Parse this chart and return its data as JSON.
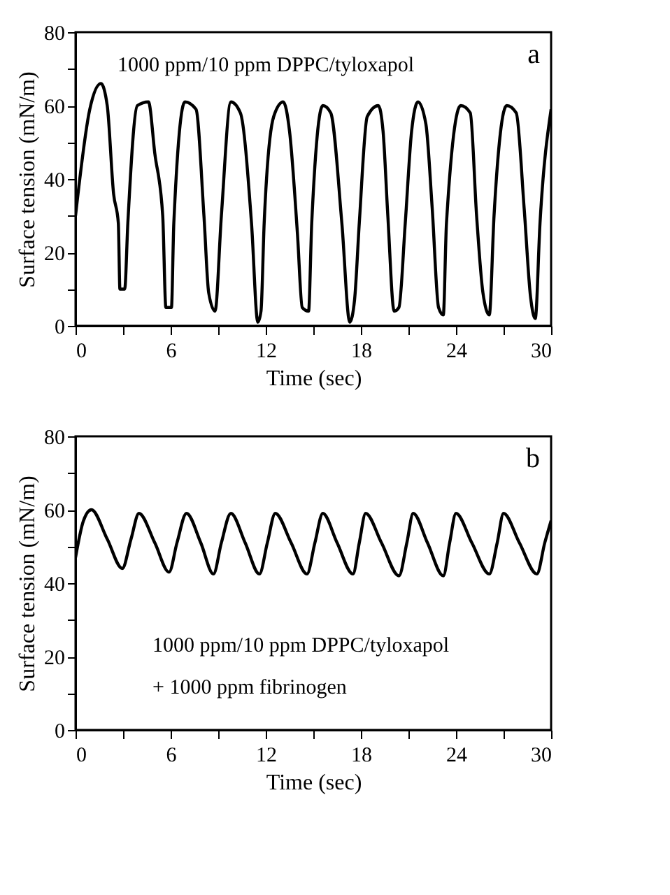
{
  "chart_data": [
    {
      "type": "line",
      "xlabel": "Time (sec)",
      "ylabel": "Surface tension (mN/m)",
      "annotations": [
        "a",
        "1000 ppm/10 ppm DPPC/tyloxapol"
      ],
      "xlim": [
        0,
        30
      ],
      "ylim": [
        0,
        80
      ],
      "grid": false,
      "marker": "none",
      "line_style": "solid",
      "xticks": [
        0,
        {
          "value": 3,
          "label": null
        },
        6,
        {
          "value": 9,
          "label": null
        },
        12,
        {
          "value": 15,
          "label": null
        },
        18,
        {
          "value": 21,
          "label": null
        },
        24,
        {
          "value": 27,
          "label": null
        },
        30
      ],
      "yticks": [
        0,
        {
          "value": 10,
          "label": null
        },
        20,
        {
          "value": 30,
          "label": null
        },
        40,
        {
          "value": 50,
          "label": null
        },
        60,
        {
          "value": 70,
          "label": null
        },
        80
      ],
      "series": [
        {
          "color": "#000000",
          "x": [
            0,
            0.9,
            1.6,
            2.0,
            2.4,
            2.7,
            2.8,
            3.1,
            3.3,
            3.9,
            4.6,
            5.0,
            5.5,
            5.7,
            6.05,
            6.2,
            6.9,
            7.6,
            8.1,
            8.4,
            8.8,
            9.2,
            9.8,
            10.4,
            11.1,
            11.5,
            11.7,
            11.9,
            12.5,
            13.1,
            13.5,
            14.0,
            14.3,
            14.7,
            14.9,
            15.6,
            16.1,
            16.8,
            17.3,
            17.6,
            17.9,
            18.4,
            19.1,
            19.4,
            19.7,
            20.1,
            20.4,
            20.8,
            21.2,
            21.6,
            22.1,
            22.5,
            22.9,
            23.2,
            23.4,
            24.3,
            24.9,
            25.3,
            25.7,
            26.1,
            26.4,
            27.2,
            27.8,
            28.3,
            28.7,
            29.0,
            29.3,
            30
          ],
          "values": [
            30,
            59,
            66,
            60,
            36,
            28,
            10,
            10,
            28,
            60,
            61,
            47,
            30,
            5,
            5,
            28,
            61,
            59,
            30,
            9,
            4,
            30,
            61,
            58,
            28,
            1,
            4,
            28,
            57,
            61,
            53,
            25,
            5,
            4,
            28,
            60,
            58,
            28,
            1,
            7,
            28,
            57,
            60,
            53,
            30,
            4,
            5,
            28,
            53,
            61,
            55,
            32,
            5,
            3,
            28,
            60,
            58,
            30,
            9,
            3,
            30,
            60,
            58,
            32,
            8,
            2,
            28,
            59
          ]
        }
      ]
    },
    {
      "type": "line",
      "xlabel": "Time (sec)",
      "ylabel": "Surface tension (mN/m)",
      "annotations": [
        "b",
        "1000 ppm/10 ppm DPPC/tyloxapol",
        "+ 1000 ppm fibrinogen"
      ],
      "xlim": [
        0,
        30
      ],
      "ylim": [
        0,
        80
      ],
      "grid": false,
      "marker": "none",
      "line_style": "solid",
      "xticks": [
        0,
        {
          "value": 3,
          "label": null
        },
        6,
        {
          "value": 9,
          "label": null
        },
        12,
        {
          "value": 15,
          "label": null
        },
        18,
        {
          "value": 21,
          "label": null
        },
        24,
        {
          "value": 27,
          "label": null
        },
        30
      ],
      "yticks": [
        0,
        {
          "value": 10,
          "label": null
        },
        20,
        {
          "value": 30,
          "label": null
        },
        40,
        {
          "value": 50,
          "label": null
        },
        60,
        {
          "value": 70,
          "label": null
        },
        80
      ],
      "series": [
        {
          "color": "#000000",
          "x": [
            0,
            0.5,
            1.0,
            2.0,
            2.95,
            3.5,
            4.0,
            5.0,
            5.9,
            6.4,
            7.0,
            7.9,
            8.7,
            9.2,
            9.8,
            10.7,
            11.6,
            12.1,
            12.6,
            13.6,
            14.6,
            15.1,
            15.6,
            16.5,
            17.5,
            17.9,
            18.3,
            19.3,
            20.4,
            20.9,
            21.3,
            22.2,
            23.2,
            23.6,
            24.0,
            25.0,
            26.1,
            26.6,
            27.0,
            28.0,
            29.1,
            29.6,
            30
          ],
          "values": [
            47,
            57,
            60,
            52,
            44,
            52,
            59,
            51,
            43,
            51,
            59,
            51,
            42.5,
            51,
            59,
            51,
            42.5,
            51,
            59,
            51,
            42.5,
            51,
            59,
            51,
            42.5,
            51,
            59,
            51,
            42,
            51,
            59,
            51,
            42,
            51,
            59,
            51,
            42.5,
            51,
            59,
            51,
            42.5,
            51,
            57
          ]
        }
      ]
    }
  ]
}
